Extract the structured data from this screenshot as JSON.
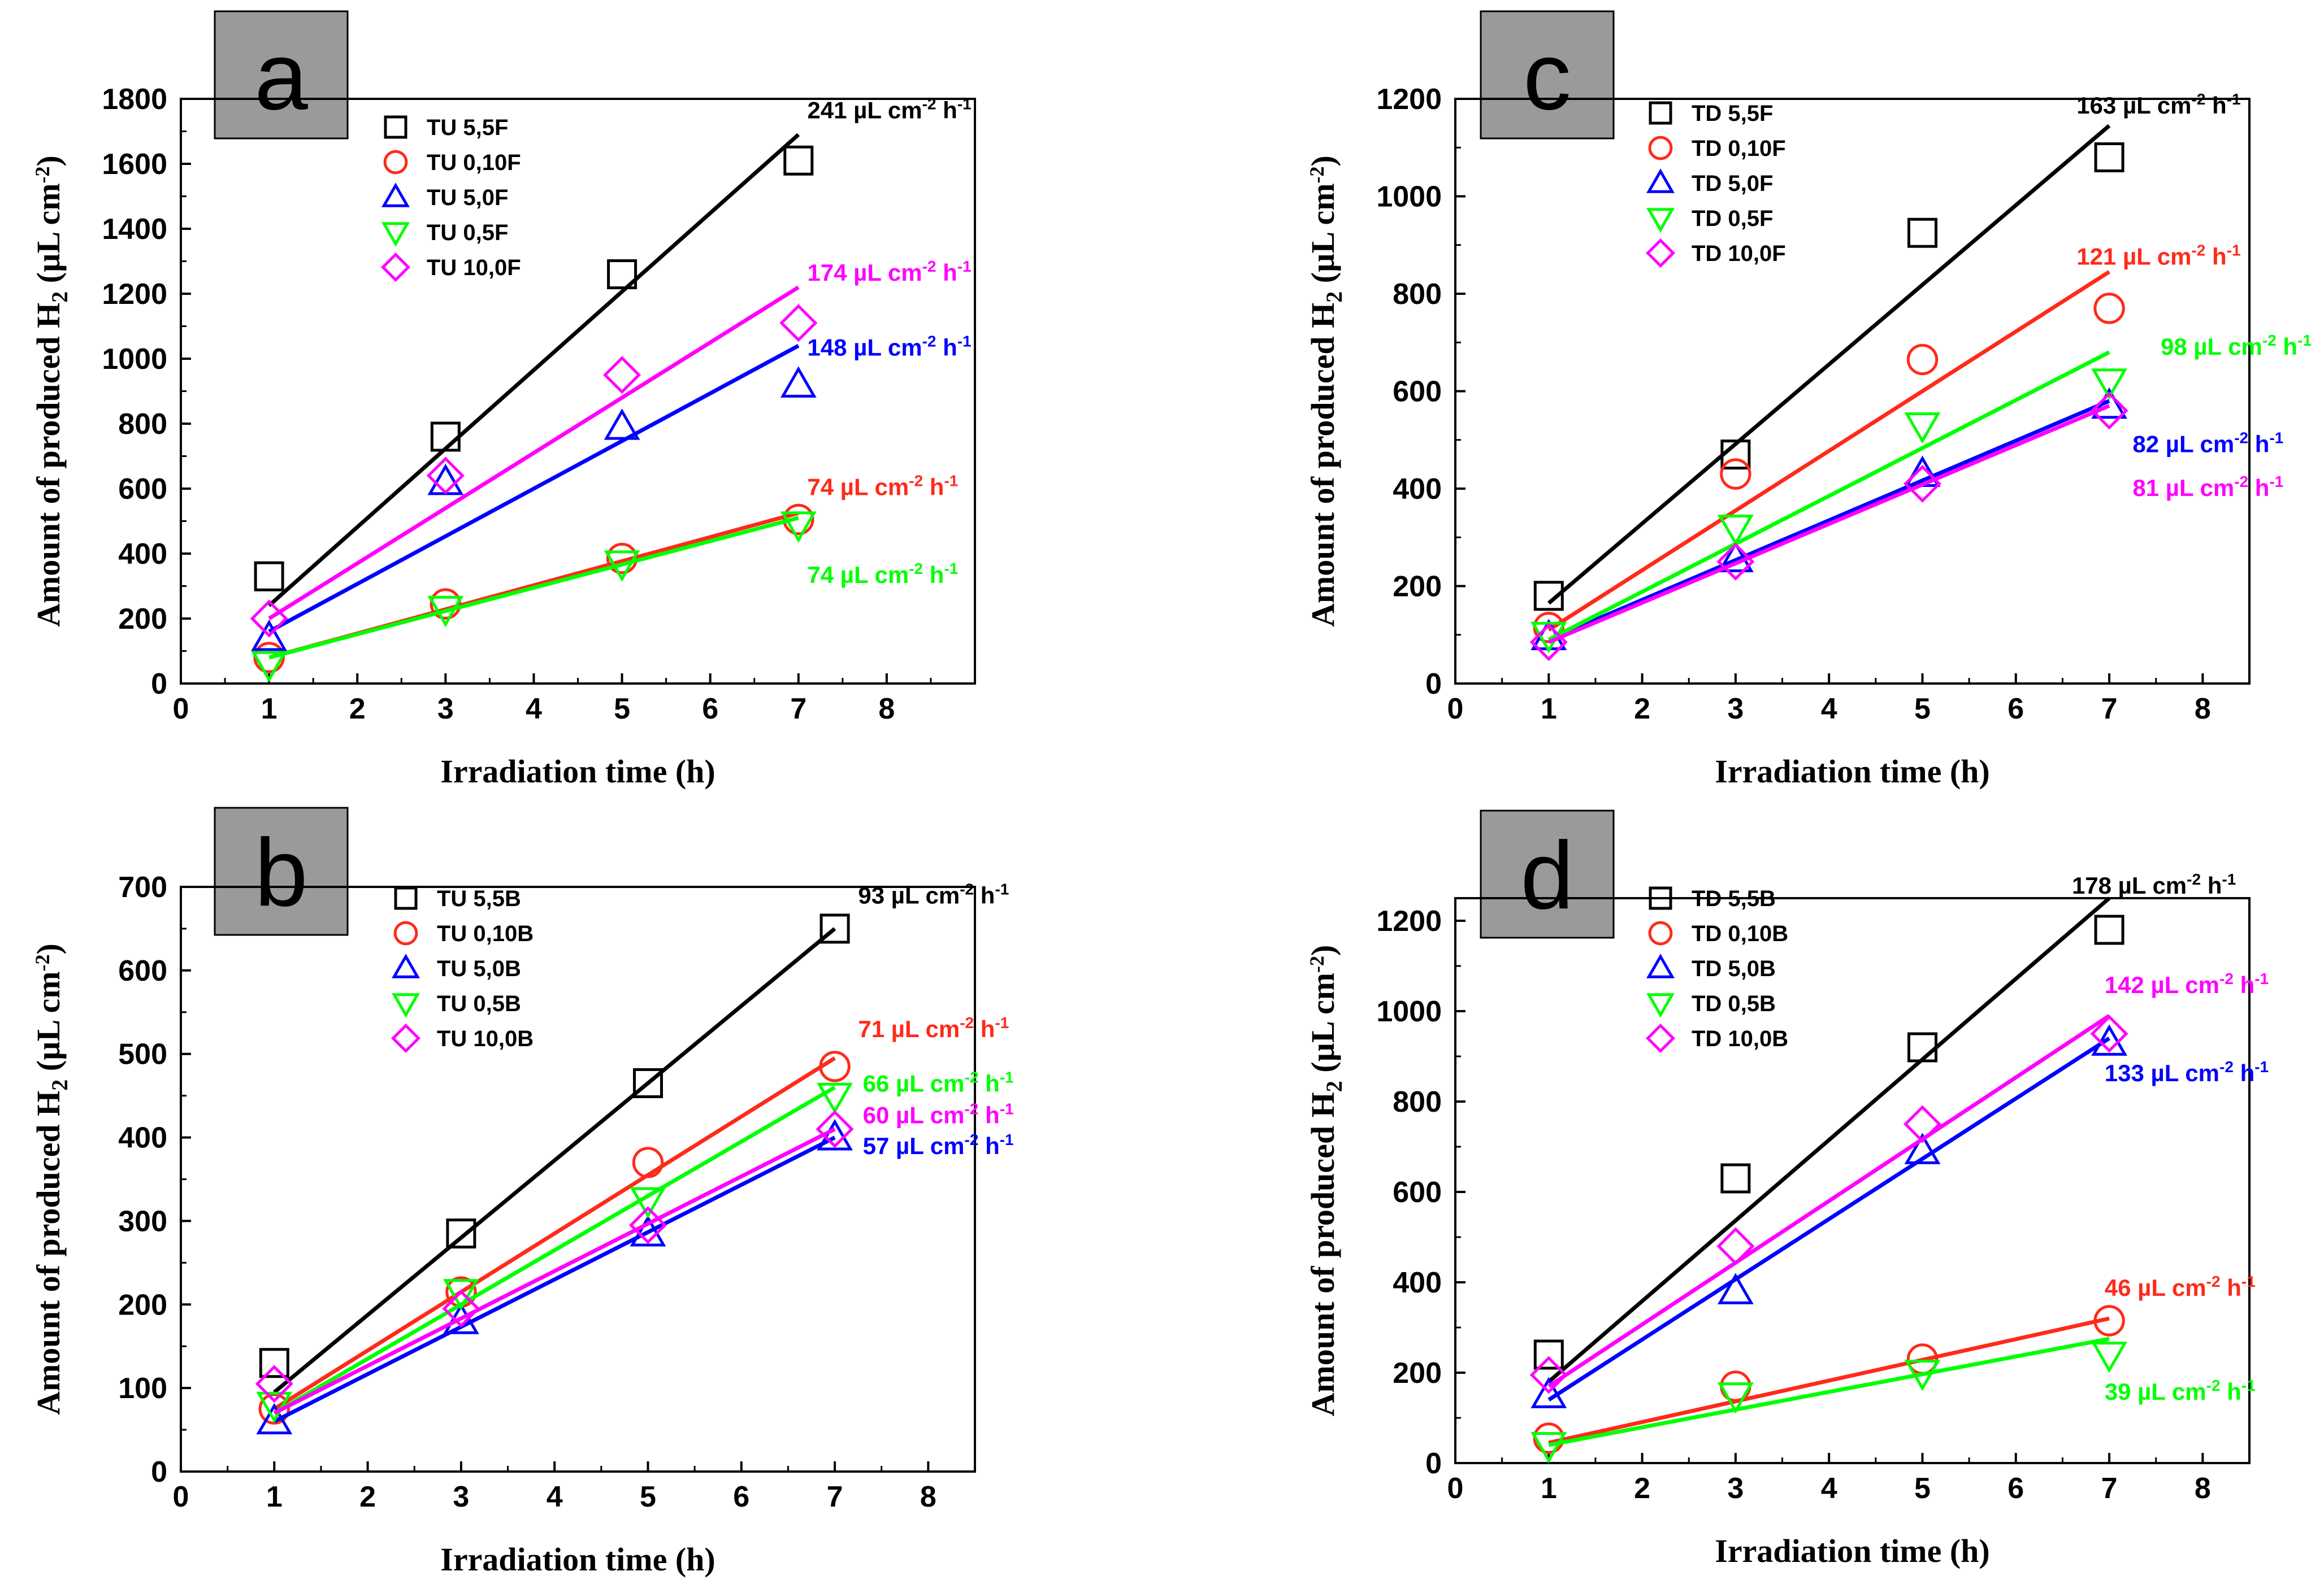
{
  "chart_data": [
    {
      "panel": "a",
      "type": "scatter",
      "xlabel": "Irradiation time (h)",
      "ylabel": "Amount of produced H2 (µL cm-2)",
      "xlim": [
        0,
        9
      ],
      "ylim": [
        0,
        1800
      ],
      "xticks": [
        0,
        1,
        2,
        3,
        4,
        5,
        6,
        7,
        8
      ],
      "yticks": [
        0,
        200,
        400,
        600,
        800,
        1000,
        1200,
        1400,
        1600,
        1800
      ],
      "legend_position": "top-left",
      "series": [
        {
          "name": "TU 5,5F",
          "marker": "square",
          "color": "#000000",
          "x": [
            1,
            3,
            5,
            7
          ],
          "y": [
            330,
            760,
            1260,
            1610
          ],
          "fit": [
            [
              1,
              240
            ],
            [
              7,
              1690
            ]
          ],
          "rate": "241 µL cm-2 h-1",
          "label_anchor": [
            7.1,
            1740
          ]
        },
        {
          "name": "TU 0,10F",
          "marker": "circle",
          "color": "#ff2a1a",
          "x": [
            1,
            3,
            5,
            7
          ],
          "y": [
            80,
            245,
            385,
            505
          ],
          "fit": [
            [
              1,
              80
            ],
            [
              7,
              525
            ]
          ],
          "rate": "74 µL cm-2 h-1",
          "label_anchor": [
            7.1,
            580
          ]
        },
        {
          "name": "TU 5,0F",
          "marker": "triangle-up",
          "color": "#0000ff",
          "x": [
            1,
            3,
            5,
            7
          ],
          "y": [
            140,
            620,
            790,
            920
          ],
          "fit": [
            [
              1,
              160
            ],
            [
              7,
              1040
            ]
          ],
          "rate": "148 µL cm-2 h-1",
          "label_anchor": [
            7.1,
            1010
          ]
        },
        {
          "name": "TU 0,5F",
          "marker": "triangle-down",
          "color": "#00ff00",
          "x": [
            1,
            3,
            5,
            7
          ],
          "y": [
            60,
            230,
            370,
            490
          ],
          "fit": [
            [
              1,
              80
            ],
            [
              7,
              510
            ]
          ],
          "rate": "74 µL cm-2 h-1",
          "label_anchor": [
            7.1,
            310
          ]
        },
        {
          "name": "TU 10,0F",
          "marker": "diamond",
          "color": "#ff00ff",
          "x": [
            1,
            3,
            5,
            7
          ],
          "y": [
            200,
            640,
            950,
            1110
          ],
          "fit": [
            [
              1,
              200
            ],
            [
              7,
              1220
            ]
          ],
          "rate": "174 µL cm-2 h-1",
          "label_anchor": [
            7.1,
            1240
          ]
        }
      ]
    },
    {
      "panel": "b",
      "type": "scatter",
      "xlabel": "Irradiation time (h)",
      "ylabel": "Amount of produced H2 (µL cm-2)",
      "xlim": [
        0,
        8.5
      ],
      "ylim": [
        0,
        700
      ],
      "xticks": [
        0,
        1,
        2,
        3,
        4,
        5,
        6,
        7,
        8
      ],
      "yticks": [
        0,
        100,
        200,
        300,
        400,
        500,
        600,
        700
      ],
      "legend_position": "top-left",
      "series": [
        {
          "name": "TU 5,5B",
          "marker": "square",
          "color": "#000000",
          "x": [
            1,
            3,
            5,
            7
          ],
          "y": [
            130,
            285,
            465,
            650
          ],
          "fit": [
            [
              1,
              95
            ],
            [
              7,
              650
            ]
          ],
          "rate": "93 µL cm-2 h-1",
          "label_anchor": [
            7.25,
            680
          ]
        },
        {
          "name": "TU 0,10B",
          "marker": "circle",
          "color": "#ff2a1a",
          "x": [
            1,
            3,
            5,
            7
          ],
          "y": [
            75,
            215,
            370,
            485
          ],
          "fit": [
            [
              1,
              75
            ],
            [
              7,
              495
            ]
          ],
          "rate": "71 µL cm-2 h-1",
          "label_anchor": [
            7.25,
            520
          ]
        },
        {
          "name": "TU 5,0B",
          "marker": "triangle-up",
          "color": "#0000ff",
          "x": [
            1,
            3,
            5,
            7
          ],
          "y": [
            60,
            180,
            285,
            400
          ],
          "fit": [
            [
              1,
              60
            ],
            [
              7,
              400
            ]
          ],
          "rate": "57 µL cm-2 h-1",
          "label_anchor": [
            7.3,
            380
          ]
        },
        {
          "name": "TU 0,5B",
          "marker": "triangle-down",
          "color": "#00ff00",
          "x": [
            1,
            3,
            5,
            7
          ],
          "y": [
            80,
            215,
            325,
            450
          ],
          "fit": [
            [
              1,
              70
            ],
            [
              7,
              460
            ]
          ],
          "rate": "66 µL cm-2 h-1",
          "label_anchor": [
            7.3,
            455
          ]
        },
        {
          "name": "TU 10,0B",
          "marker": "diamond",
          "color": "#ff00ff",
          "x": [
            1,
            3,
            5,
            7
          ],
          "y": [
            105,
            195,
            295,
            410
          ],
          "fit": [
            [
              1,
              70
            ],
            [
              7,
              410
            ]
          ],
          "rate": "60 µL cm-2 h-1",
          "label_anchor": [
            7.3,
            417
          ]
        }
      ]
    },
    {
      "panel": "c",
      "type": "scatter",
      "xlabel": "Irradiation time (h)",
      "ylabel": "Amount of produced H2 (µL cm-2)",
      "xlim": [
        0,
        8.5
      ],
      "ylim": [
        0,
        1200
      ],
      "xticks": [
        0,
        1,
        2,
        3,
        4,
        5,
        6,
        7,
        8
      ],
      "yticks": [
        0,
        200,
        400,
        600,
        800,
        1000,
        1200
      ],
      "legend_position": "top-left",
      "series": [
        {
          "name": "TD 5,5F",
          "marker": "square",
          "color": "#000000",
          "x": [
            1,
            3,
            5,
            7
          ],
          "y": [
            180,
            470,
            925,
            1080
          ],
          "fit": [
            [
              1,
              165
            ],
            [
              7,
              1145
            ]
          ],
          "rate": "163 µL cm-2 h-1",
          "label_anchor": [
            6.65,
            1170
          ]
        },
        {
          "name": "TD 0,10F",
          "marker": "circle",
          "color": "#ff2a1a",
          "x": [
            1,
            3,
            5,
            7
          ],
          "y": [
            115,
            430,
            665,
            770
          ],
          "fit": [
            [
              1,
              110
            ],
            [
              7,
              845
            ]
          ],
          "rate": "121 µL cm-2 h-1",
          "label_anchor": [
            6.65,
            860
          ]
        },
        {
          "name": "TD 5,0F",
          "marker": "triangle-up",
          "color": "#0000ff",
          "x": [
            1,
            3,
            5,
            7
          ],
          "y": [
            95,
            255,
            430,
            570
          ],
          "fit": [
            [
              1,
              90
            ],
            [
              7,
              580
            ]
          ],
          "rate": "82 µL cm-2 h-1",
          "label_anchor": [
            7.25,
            475
          ]
        },
        {
          "name": "TD 0,5F",
          "marker": "triangle-down",
          "color": "#00ff00",
          "x": [
            1,
            3,
            5,
            7
          ],
          "y": [
            100,
            320,
            530,
            620
          ],
          "fit": [
            [
              1,
              90
            ],
            [
              7,
              680
            ]
          ],
          "rate": "98 µL cm-2 h-1",
          "label_anchor": [
            7.55,
            675
          ]
        },
        {
          "name": "TD 10,0F",
          "marker": "diamond",
          "color": "#ff00ff",
          "x": [
            1,
            3,
            5,
            7
          ],
          "y": [
            85,
            250,
            410,
            560
          ],
          "fit": [
            [
              1,
              85
            ],
            [
              7,
              570
            ]
          ],
          "rate": "81 µL cm-2 h-1",
          "label_anchor": [
            7.25,
            385
          ]
        }
      ]
    },
    {
      "panel": "d",
      "type": "scatter",
      "xlabel": "Irradiation time (h)",
      "ylabel": "Amount of produced H2 (µL cm-2)",
      "xlim": [
        0,
        8.5
      ],
      "ylim": [
        0,
        1250
      ],
      "xticks": [
        0,
        1,
        2,
        3,
        4,
        5,
        6,
        7,
        8
      ],
      "yticks": [
        0,
        200,
        400,
        600,
        800,
        1000,
        1200
      ],
      "legend_position": "top-left",
      "series": [
        {
          "name": "TD 5,5B",
          "marker": "square",
          "color": "#000000",
          "x": [
            1,
            3,
            5,
            7
          ],
          "y": [
            240,
            630,
            920,
            1180
          ],
          "fit": [
            [
              1,
              180
            ],
            [
              7,
              1250
            ]
          ],
          "rate": "178 µL cm-2 h-1",
          "label_anchor": [
            6.6,
            1260
          ]
        },
        {
          "name": "TD 0,10B",
          "marker": "circle",
          "color": "#ff2a1a",
          "x": [
            1,
            3,
            5,
            7
          ],
          "y": [
            55,
            170,
            230,
            315
          ],
          "fit": [
            [
              1,
              45
            ],
            [
              7,
              320
            ]
          ],
          "rate": "46 µL cm-2 h-1",
          "label_anchor": [
            6.95,
            370
          ]
        },
        {
          "name": "TD 5,0B",
          "marker": "triangle-up",
          "color": "#0000ff",
          "x": [
            1,
            3,
            5,
            7
          ],
          "y": [
            150,
            380,
            690,
            930
          ],
          "fit": [
            [
              1,
              140
            ],
            [
              7,
              940
            ]
          ],
          "rate": "133 µL cm-2 h-1",
          "label_anchor": [
            6.95,
            845
          ]
        },
        {
          "name": "TD 0,5B",
          "marker": "triangle-down",
          "color": "#00ff00",
          "x": [
            1,
            3,
            5,
            7
          ],
          "y": [
            40,
            150,
            200,
            240
          ],
          "fit": [
            [
              1,
              40
            ],
            [
              7,
              275
            ]
          ],
          "rate": "39 µL cm-2 h-1",
          "label_anchor": [
            6.95,
            140
          ]
        },
        {
          "name": "TD 10,0B",
          "marker": "diamond",
          "color": "#ff00ff",
          "x": [
            1,
            3,
            5,
            7
          ],
          "y": [
            195,
            480,
            750,
            950
          ],
          "fit": [
            [
              1,
              170
            ],
            [
              7,
              990
            ]
          ],
          "rate": "142 µL cm-2 h-1",
          "label_anchor": [
            6.95,
            1040
          ]
        }
      ]
    }
  ]
}
